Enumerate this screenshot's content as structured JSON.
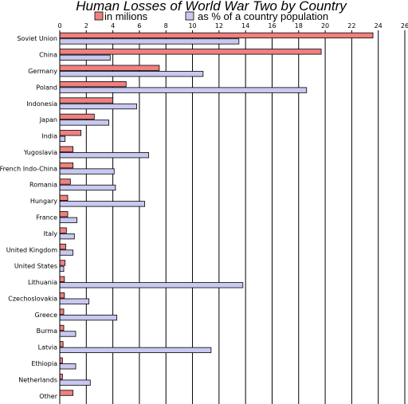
{
  "chart_data": {
    "type": "bar",
    "orientation": "horizontal",
    "title": "Human Losses of World War Two by Country",
    "xlabel": "",
    "ylabel": "",
    "xlim": [
      0,
      26
    ],
    "xticks": [
      0,
      2,
      4,
      6,
      8,
      10,
      12,
      14,
      16,
      18,
      20,
      22,
      24,
      26
    ],
    "grid": true,
    "legend_position": "top",
    "categories": [
      "Soviet Union",
      "China",
      "Germany",
      "Poland",
      "Indonesia",
      "Japan",
      "India",
      "Yugoslavia",
      "French Indo-China",
      "Romania",
      "Hungary",
      "France",
      "Italy",
      "United Kingdom",
      "United States",
      "Lithuania",
      "Czechoslovakia",
      "Greece",
      "Burma",
      "Latvia",
      "Ethiopia",
      "Netherlands",
      "Other"
    ],
    "series": [
      {
        "name": "in milions",
        "color": "#f08080",
        "values": [
          23.6,
          19.7,
          7.5,
          5.0,
          4.0,
          2.6,
          1.6,
          1.0,
          1.0,
          0.8,
          0.6,
          0.6,
          0.5,
          0.45,
          0.4,
          0.35,
          0.35,
          0.3,
          0.3,
          0.25,
          0.2,
          0.2,
          1.0
        ]
      },
      {
        "name": "as % of a country population",
        "color": "#c8c8f0",
        "values": [
          13.5,
          3.8,
          10.8,
          18.6,
          5.8,
          3.7,
          0.4,
          6.7,
          4.1,
          4.2,
          6.4,
          1.3,
          1.1,
          1.0,
          0.3,
          13.8,
          2.2,
          4.3,
          1.2,
          11.4,
          1.2,
          2.3,
          null
        ]
      }
    ]
  }
}
